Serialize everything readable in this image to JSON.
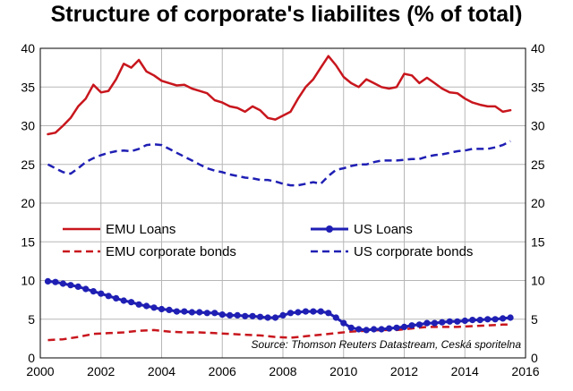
{
  "colors": {
    "emu": "#c8161d",
    "us": "#1f1fb4",
    "grid": "#b7b7b7"
  },
  "chart_data": {
    "type": "line",
    "title": "Structure of corporate's liabilites (% of total)",
    "xlabel": "",
    "ylabel": "",
    "xlim": [
      2000,
      2016
    ],
    "ylim": [
      0,
      40
    ],
    "x_ticks": [
      "2000",
      "2002",
      "2004",
      "2006",
      "2008",
      "2010",
      "2012",
      "2014",
      "2016"
    ],
    "y_ticks": [
      "0",
      "5",
      "10",
      "15",
      "20",
      "25",
      "30",
      "35",
      "40"
    ],
    "source": "Source: Thomson Reuters Datastream, Ceská sporitelna",
    "legend": [
      "EMU Loans",
      "US Loans",
      "EMU corporate bonds",
      "US corporate bonds"
    ],
    "series": [
      {
        "name": "EMU Loans",
        "style": "solid",
        "color": "#c8161d",
        "x": [
          2000.25,
          2000.5,
          2000.75,
          2001.0,
          2001.25,
          2001.5,
          2001.75,
          2002.0,
          2002.25,
          2002.5,
          2002.75,
          2003.0,
          2003.25,
          2003.5,
          2003.75,
          2004.0,
          2004.25,
          2004.5,
          2004.75,
          2005.0,
          2005.25,
          2005.5,
          2005.75,
          2006.0,
          2006.25,
          2006.5,
          2006.75,
          2007.0,
          2007.25,
          2007.5,
          2007.75,
          2008.0,
          2008.25,
          2008.5,
          2008.75,
          2009.0,
          2009.25,
          2009.5,
          2009.75,
          2010.0,
          2010.25,
          2010.5,
          2010.75,
          2011.0,
          2011.25,
          2011.5,
          2011.75,
          2012.0,
          2012.25,
          2012.5,
          2012.75,
          2013.0,
          2013.25,
          2013.5,
          2013.75,
          2014.0,
          2014.25,
          2014.5,
          2014.75,
          2015.0,
          2015.25,
          2015.5
        ],
        "y": [
          28.9,
          29.1,
          30.0,
          31.0,
          32.5,
          33.5,
          35.3,
          34.3,
          34.5,
          36.0,
          38.0,
          37.5,
          38.5,
          37.0,
          36.5,
          35.8,
          35.5,
          35.2,
          35.3,
          34.8,
          34.5,
          34.2,
          33.3,
          33.0,
          32.5,
          32.3,
          31.8,
          32.5,
          32.0,
          31.0,
          30.8,
          31.3,
          31.8,
          33.5,
          35.0,
          36.0,
          37.5,
          39.0,
          37.8,
          36.3,
          35.5,
          35.0,
          36.0,
          35.5,
          35.0,
          34.8,
          35.0,
          36.7,
          36.5,
          35.5,
          36.2,
          35.5,
          34.8,
          34.3,
          34.2,
          33.5,
          33.0,
          32.7,
          32.5,
          32.5,
          31.8,
          32.0
        ]
      },
      {
        "name": "EMU corporate bonds",
        "style": "dashed",
        "color": "#c8161d",
        "x": [
          2000.25,
          2000.75,
          2001.25,
          2001.75,
          2002.25,
          2002.75,
          2003.25,
          2003.75,
          2004.25,
          2004.75,
          2005.25,
          2005.75,
          2006.25,
          2006.75,
          2007.25,
          2007.75,
          2008.25,
          2008.75,
          2009.25,
          2009.75,
          2010.25,
          2010.75,
          2011.25,
          2011.75,
          2012.25,
          2012.75,
          2013.25,
          2013.75,
          2014.25,
          2014.75,
          2015.25,
          2015.5
        ],
        "y": [
          2.3,
          2.4,
          2.7,
          3.1,
          3.2,
          3.3,
          3.5,
          3.6,
          3.4,
          3.3,
          3.3,
          3.2,
          3.1,
          3.0,
          2.9,
          2.7,
          2.6,
          2.8,
          3.0,
          3.2,
          3.4,
          3.5,
          3.6,
          3.6,
          3.8,
          4.0,
          4.0,
          4.0,
          4.1,
          4.2,
          4.3,
          4.3
        ]
      },
      {
        "name": "US Loans",
        "style": "solid-markers",
        "color": "#1f1fb4",
        "x": [
          2000.25,
          2000.5,
          2000.75,
          2001.0,
          2001.25,
          2001.5,
          2001.75,
          2002.0,
          2002.25,
          2002.5,
          2002.75,
          2003.0,
          2003.25,
          2003.5,
          2003.75,
          2004.0,
          2004.25,
          2004.5,
          2004.75,
          2005.0,
          2005.25,
          2005.5,
          2005.75,
          2006.0,
          2006.25,
          2006.5,
          2006.75,
          2007.0,
          2007.25,
          2007.5,
          2007.75,
          2008.0,
          2008.25,
          2008.5,
          2008.75,
          2009.0,
          2009.25,
          2009.5,
          2009.75,
          2010.0,
          2010.25,
          2010.5,
          2010.75,
          2011.0,
          2011.25,
          2011.5,
          2011.75,
          2012.0,
          2012.25,
          2012.5,
          2012.75,
          2013.0,
          2013.25,
          2013.5,
          2013.75,
          2014.0,
          2014.25,
          2014.5,
          2014.75,
          2015.0,
          2015.25,
          2015.5
        ],
        "y": [
          9.9,
          9.8,
          9.6,
          9.4,
          9.2,
          8.9,
          8.6,
          8.3,
          8.0,
          7.7,
          7.4,
          7.2,
          6.9,
          6.7,
          6.5,
          6.3,
          6.2,
          6.0,
          6.0,
          5.9,
          5.9,
          5.8,
          5.8,
          5.6,
          5.5,
          5.5,
          5.4,
          5.4,
          5.3,
          5.2,
          5.2,
          5.5,
          5.8,
          5.9,
          6.0,
          6.0,
          6.0,
          5.8,
          5.2,
          4.5,
          3.9,
          3.7,
          3.6,
          3.7,
          3.7,
          3.8,
          3.9,
          4.0,
          4.2,
          4.3,
          4.5,
          4.5,
          4.6,
          4.7,
          4.7,
          4.8,
          4.9,
          4.9,
          5.0,
          5.0,
          5.1,
          5.2
        ]
      },
      {
        "name": "US corporate bonds",
        "style": "dashed",
        "color": "#1f1fb4",
        "x": [
          2000.25,
          2000.5,
          2000.75,
          2001.0,
          2001.25,
          2001.5,
          2001.75,
          2002.0,
          2002.25,
          2002.5,
          2002.75,
          2003.0,
          2003.25,
          2003.5,
          2003.75,
          2004.0,
          2004.25,
          2004.5,
          2004.75,
          2005.0,
          2005.25,
          2005.5,
          2005.75,
          2006.0,
          2006.25,
          2006.5,
          2006.75,
          2007.0,
          2007.25,
          2007.5,
          2007.75,
          2008.0,
          2008.25,
          2008.5,
          2008.75,
          2009.0,
          2009.25,
          2009.5,
          2009.75,
          2010.0,
          2010.25,
          2010.5,
          2010.75,
          2011.0,
          2011.25,
          2011.5,
          2011.75,
          2012.0,
          2012.25,
          2012.5,
          2012.75,
          2013.0,
          2013.25,
          2013.5,
          2013.75,
          2014.0,
          2014.25,
          2014.5,
          2014.75,
          2015.0,
          2015.25,
          2015.5
        ],
        "y": [
          25.0,
          24.5,
          24.0,
          23.8,
          24.5,
          25.3,
          25.8,
          26.2,
          26.5,
          26.7,
          26.8,
          26.7,
          27.0,
          27.5,
          27.6,
          27.5,
          27.0,
          26.5,
          26.0,
          25.5,
          25.0,
          24.5,
          24.2,
          24.0,
          23.7,
          23.5,
          23.3,
          23.2,
          23.0,
          23.0,
          22.8,
          22.5,
          22.3,
          22.3,
          22.5,
          22.7,
          22.5,
          23.5,
          24.3,
          24.5,
          24.8,
          25.0,
          25.0,
          25.3,
          25.5,
          25.5,
          25.5,
          25.6,
          25.7,
          25.7,
          26.0,
          26.2,
          26.3,
          26.5,
          26.7,
          26.8,
          27.0,
          27.0,
          27.0,
          27.2,
          27.5,
          28.0
        ]
      }
    ]
  }
}
